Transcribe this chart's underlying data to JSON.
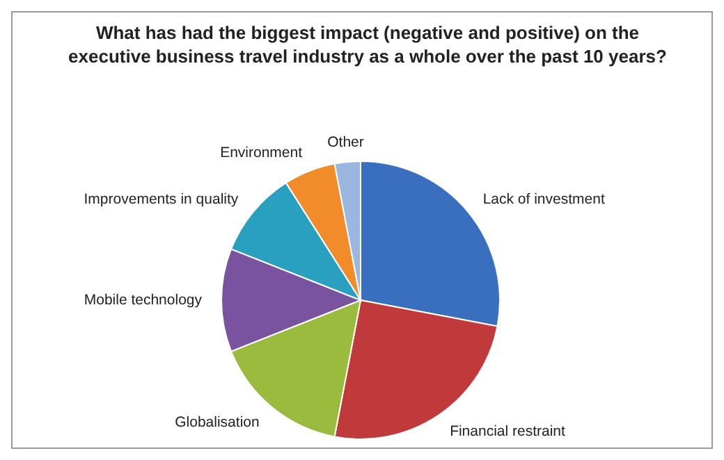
{
  "chart_data": {
    "type": "pie",
    "title": "What has had the biggest impact (negative and positive) on the executive business travel industry as a whole over the past 10 years?",
    "categories": [
      "Lack of investment",
      "Financial restraint",
      "Globalisation",
      "Mobile technology",
      "Improvements in quality",
      "Environment",
      "Other"
    ],
    "values": [
      28,
      25,
      16,
      12,
      10,
      6,
      3
    ],
    "colors": [
      "#3a6fbf",
      "#c0393b",
      "#9bbb3e",
      "#7a53a0",
      "#2aa0c0",
      "#f28b2a",
      "#9bb7e0"
    ],
    "legend": false
  }
}
